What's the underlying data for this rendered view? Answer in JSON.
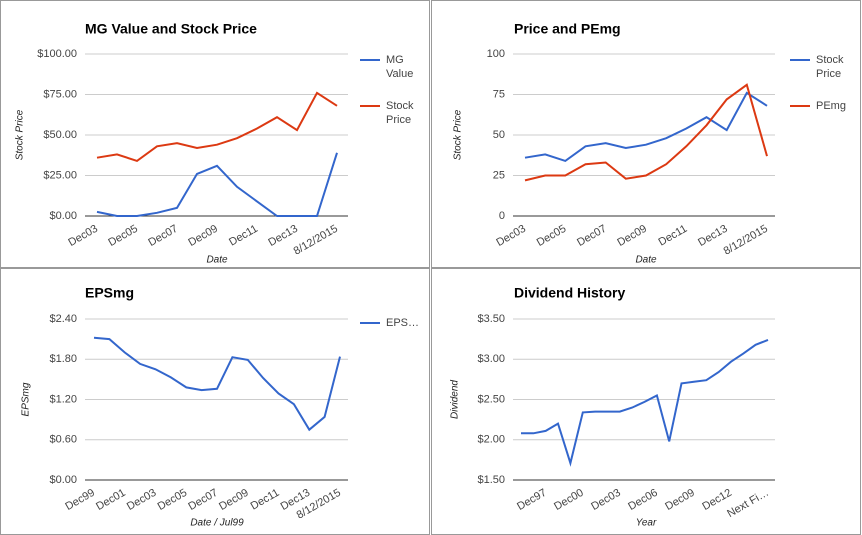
{
  "chart_data": [
    {
      "type": "line",
      "title": "MG Value and Stock Price",
      "x_label": "Date",
      "y_label": "Stock Price",
      "categories": [
        "Dec03",
        null,
        "Dec05",
        null,
        "Dec07",
        null,
        "Dec09",
        null,
        "Dec11",
        null,
        "Dec13",
        null,
        "8/12/2015"
      ],
      "series": [
        {
          "name": "MG Value",
          "color": "#3366cc",
          "values": [
            2.5,
            0,
            0,
            2,
            5,
            26,
            31,
            18,
            9,
            0,
            0,
            0,
            39
          ]
        },
        {
          "name": "Stock Price",
          "color": "#dc3912",
          "values": [
            36,
            38,
            34,
            43,
            45,
            42,
            44,
            48,
            54,
            61,
            53,
            76,
            68
          ]
        }
      ],
      "ylim": [
        0,
        100
      ],
      "yticks": [
        {
          "value": 0,
          "label": "$0.00"
        },
        {
          "value": 25,
          "label": "$25.00"
        },
        {
          "value": 50,
          "label": "$50.00"
        },
        {
          "value": 75,
          "label": "$75.00"
        },
        {
          "value": 100,
          "label": "$100.00"
        }
      ],
      "grid": true,
      "legend": "right"
    },
    {
      "type": "line",
      "title": "Price and PEmg",
      "x_label": "Date",
      "y_label": "Stock Price",
      "categories": [
        "Dec03",
        null,
        "Dec05",
        null,
        "Dec07",
        null,
        "Dec09",
        null,
        "Dec11",
        null,
        "Dec13",
        null,
        "8/12/2015"
      ],
      "series": [
        {
          "name": "Stock Price",
          "color": "#3366cc",
          "values": [
            36,
            38,
            34,
            43,
            45,
            42,
            44,
            48,
            54,
            61,
            53,
            76,
            68
          ]
        },
        {
          "name": "PEmg",
          "color": "#dc3912",
          "values": [
            22,
            25,
            25,
            32,
            33,
            23,
            25,
            32,
            43,
            56,
            72,
            81,
            37
          ]
        }
      ],
      "ylim": [
        0,
        100
      ],
      "yticks": [
        0,
        25,
        50,
        75,
        100
      ],
      "grid": true,
      "legend": "right"
    },
    {
      "type": "line",
      "title": "EPSmg",
      "x_label": "Date / Jul99",
      "y_label": "EPSmg",
      "categories": [
        "Dec99",
        null,
        "Dec01",
        null,
        "Dec03",
        null,
        "Dec05",
        null,
        "Dec07",
        null,
        "Dec09",
        null,
        "Dec11",
        null,
        "Dec13",
        null,
        "8/12/2015"
      ],
      "series": [
        {
          "name": "EPS…",
          "color": "#3366cc",
          "values": [
            2.12,
            2.1,
            1.9,
            1.73,
            1.65,
            1.53,
            1.38,
            1.34,
            1.36,
            1.83,
            1.79,
            1.52,
            1.29,
            1.13,
            0.75,
            0.94,
            1.84
          ]
        }
      ],
      "ylim": [
        0,
        2.4
      ],
      "yticks": [
        {
          "value": 0,
          "label": "$0.00"
        },
        {
          "value": 0.6,
          "label": "$0.60"
        },
        {
          "value": 1.2,
          "label": "$1.20"
        },
        {
          "value": 1.8,
          "label": "$1.80"
        },
        {
          "value": 2.4,
          "label": "$2.40"
        }
      ],
      "grid": true,
      "legend": "right"
    },
    {
      "type": "line",
      "title": "Dividend History",
      "x_label": "Year",
      "y_label": "Dividend",
      "categories": [
        null,
        null,
        "Dec97",
        null,
        null,
        "Dec00",
        null,
        null,
        "Dec03",
        null,
        null,
        "Dec06",
        null,
        null,
        "Dec09",
        null,
        null,
        "Dec12",
        null,
        null,
        "Next Fi…"
      ],
      "series": [
        {
          "name": "Dividend",
          "color": "#3366cc",
          "values": [
            2.08,
            2.08,
            2.11,
            2.2,
            1.71,
            2.34,
            2.35,
            2.35,
            2.35,
            2.4,
            2.47,
            2.55,
            1.98,
            2.7,
            2.72,
            2.74,
            2.84,
            2.97,
            3.07,
            3.18,
            3.24
          ]
        }
      ],
      "ylim": [
        1.5,
        3.5
      ],
      "yticks": [
        {
          "value": 1.5,
          "label": "$1.50"
        },
        {
          "value": 2,
          "label": "$2.00"
        },
        {
          "value": 2.5,
          "label": "$2.50"
        },
        {
          "value": 3,
          "label": "$3.00"
        },
        {
          "value": 3.5,
          "label": "$3.50"
        }
      ],
      "grid": true
    }
  ]
}
